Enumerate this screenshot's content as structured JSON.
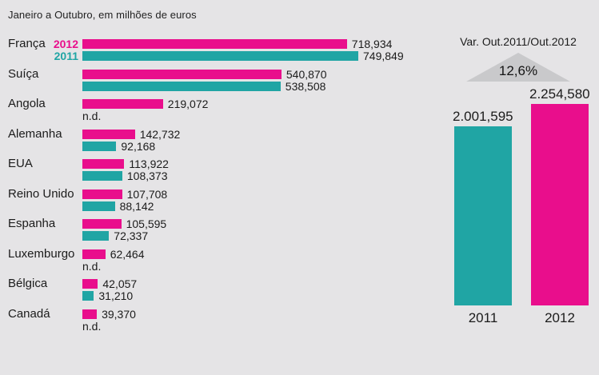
{
  "colors": {
    "pink_2012": "#e90e8c",
    "teal_2011": "#20a5a4",
    "background": "#e5e4e6",
    "triangle": "#c9c9cb",
    "text": "#1b1b1b"
  },
  "chart_data": [
    {
      "type": "bar",
      "orientation": "horizontal",
      "title": "Janeiro a Outubro, em milhões de euros",
      "unit": "milhões de euros",
      "grid": false,
      "legend_position": "inline-first-row",
      "no_data_label": "n.d.",
      "categories": [
        "França",
        "Suíça",
        "Angola",
        "Alemanha",
        "EUA",
        "Reino Unido",
        "Espanha",
        "Luxemburgo",
        "Bélgica",
        "Canadá"
      ],
      "series": [
        {
          "name": "2012",
          "color": "#e90e8c",
          "values": [
            718.934,
            540.87,
            219.072,
            142.732,
            113.922,
            107.708,
            105.595,
            62.464,
            42.057,
            39.37
          ],
          "labels": [
            "718,934",
            "540,870",
            "219,072",
            "142,732",
            "113,922",
            "107,708",
            "105,595",
            "62,464",
            "42,057",
            "39,370"
          ]
        },
        {
          "name": "2011",
          "color": "#20a5a4",
          "values": [
            749.849,
            538.508,
            null,
            92.168,
            108.373,
            88.142,
            72.337,
            null,
            31.21,
            null
          ],
          "labels": [
            "749,849",
            "538,508",
            "n.d.",
            "92,168",
            "108,373",
            "88,142",
            "72,337",
            "n.d.",
            "31,210",
            "n.d."
          ]
        }
      ]
    },
    {
      "type": "bar",
      "orientation": "vertical",
      "title": "Var. Out.2011/Out.2012",
      "variation_label": "12,6%",
      "triangle_color": "#c9c9cb",
      "categories": [
        "2011",
        "2012"
      ],
      "values": [
        2001.595,
        2254.58
      ],
      "labels": [
        "2.001,595",
        "2.254,580"
      ],
      "colors": [
        "#20a5a4",
        "#e90e8c"
      ]
    }
  ]
}
